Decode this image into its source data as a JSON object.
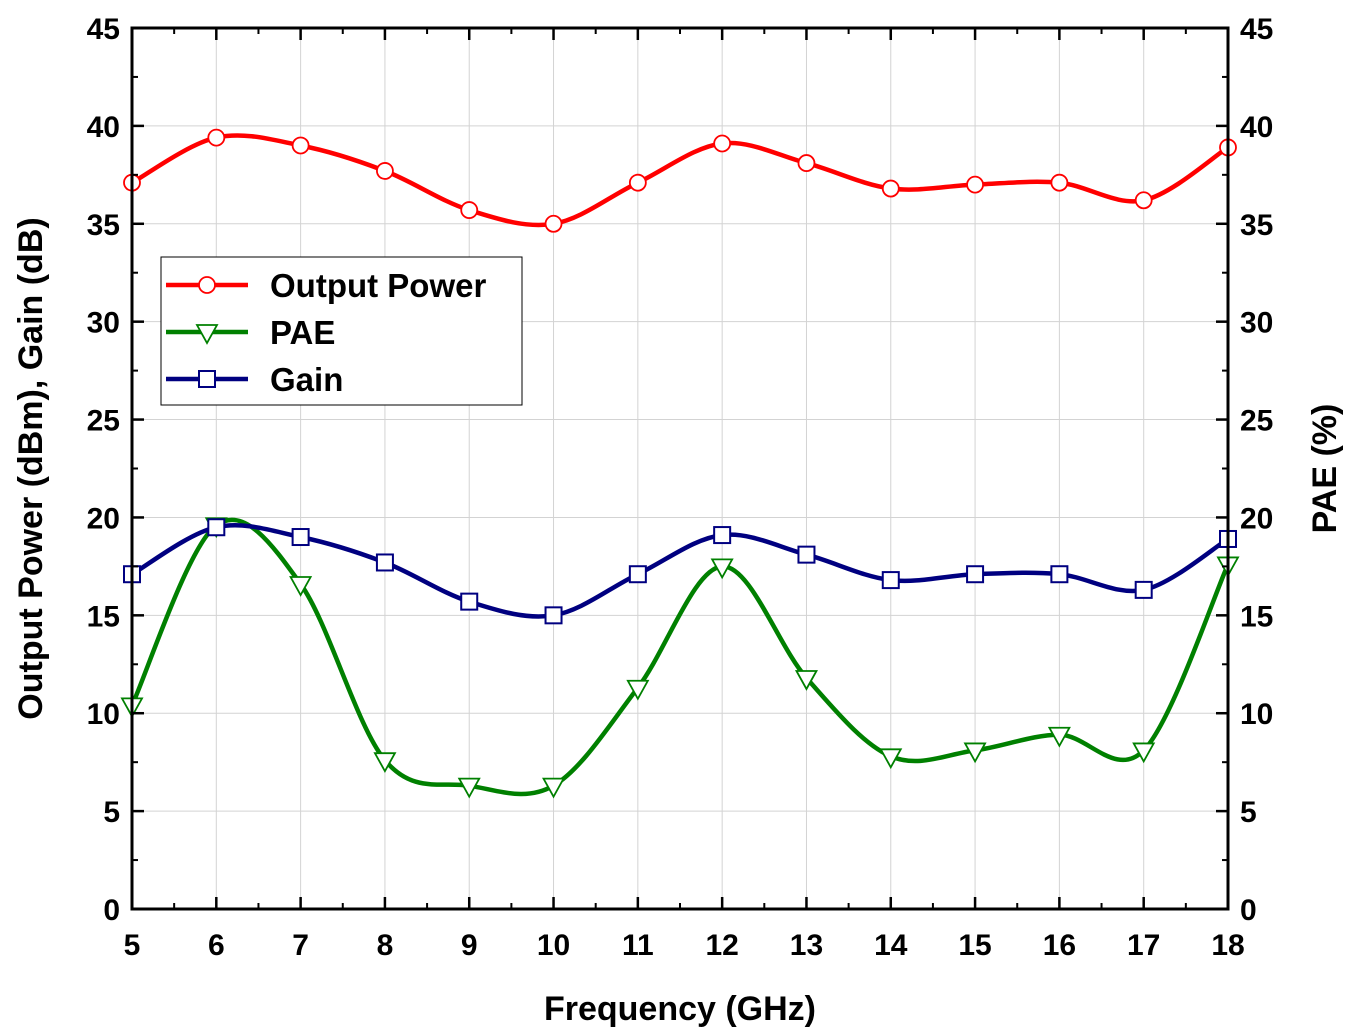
{
  "chart_data": {
    "type": "line",
    "xlabel": "Frequency (GHz)",
    "ylabel_left": "Output Power (dBm), Gain (dB)",
    "ylabel_right": "PAE (%)",
    "xlim": [
      5,
      18
    ],
    "ylim_left": [
      0,
      45
    ],
    "ylim_right": [
      0,
      45
    ],
    "x_ticks": [
      5,
      6,
      7,
      8,
      9,
      10,
      11,
      12,
      13,
      14,
      15,
      16,
      17,
      18
    ],
    "y_ticks": [
      0,
      5,
      10,
      15,
      20,
      25,
      30,
      35,
      40,
      45
    ],
    "grid": true,
    "legend_position": "upper-left",
    "x": [
      5,
      6,
      7,
      8,
      9,
      10,
      11,
      12,
      13,
      14,
      15,
      16,
      17,
      18
    ],
    "series": [
      {
        "name": "Output Power",
        "axis": "left",
        "color": "#ff0000",
        "marker": "circle",
        "values": [
          37.1,
          39.4,
          39.0,
          37.7,
          35.7,
          35.0,
          37.1,
          39.1,
          38.1,
          36.8,
          37.0,
          37.1,
          36.2,
          38.9
        ]
      },
      {
        "name": "PAE",
        "axis": "right",
        "color": "#008000",
        "marker": "triangle-down",
        "values": [
          10.4,
          19.6,
          16.6,
          7.6,
          6.3,
          6.3,
          11.3,
          17.5,
          11.8,
          7.8,
          8.1,
          8.9,
          8.1,
          17.6
        ]
      },
      {
        "name": "Gain",
        "axis": "left",
        "color": "#000080",
        "marker": "square",
        "values": [
          17.1,
          19.5,
          19.0,
          17.7,
          15.7,
          15.0,
          17.1,
          19.1,
          18.1,
          16.8,
          17.1,
          17.1,
          16.3,
          18.9
        ]
      }
    ]
  }
}
